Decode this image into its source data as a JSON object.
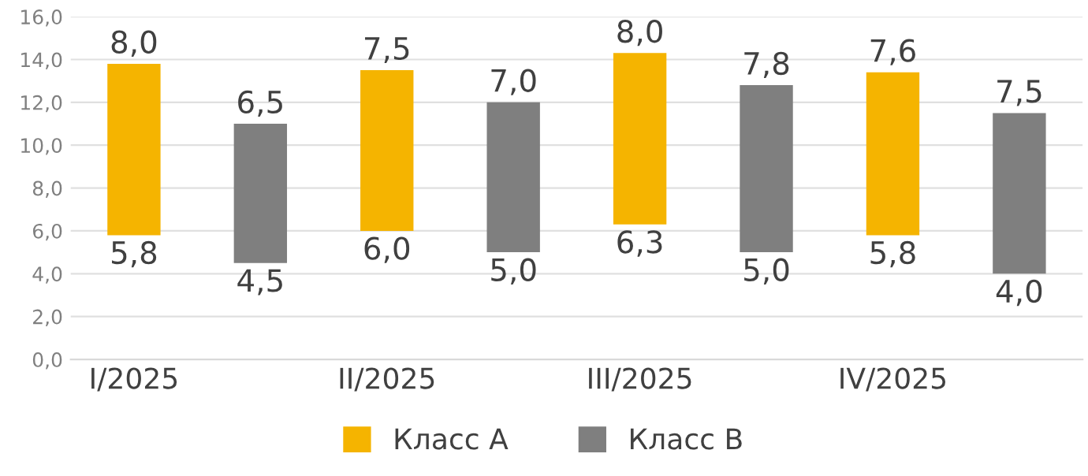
{
  "chart_data": {
    "type": "bar",
    "categories": [
      "I/2025",
      null,
      "II/2025",
      null,
      "III/2025",
      null,
      "IV/2025",
      null
    ],
    "series": [
      {
        "name": "Класс А",
        "color": "#f5b400",
        "values": [
          8.0,
          null,
          7.5,
          null,
          8.0,
          null,
          7.6,
          null
        ],
        "base": [
          5.8,
          null,
          6.0,
          null,
          6.3,
          null,
          5.8,
          null
        ],
        "value_labels": [
          "8,0",
          null,
          "7,5",
          null,
          "8,0",
          null,
          "7,6",
          null
        ]
      },
      {
        "name": "Класс B",
        "color": "#7f7f7f",
        "values": [
          null,
          6.5,
          null,
          7.0,
          null,
          7.8,
          null,
          7.5
        ],
        "base": [
          null,
          4.5,
          null,
          5.0,
          null,
          5.0,
          null,
          4.0
        ],
        "value_labels": [
          null,
          "6,5",
          null,
          "7,0",
          null,
          "7,8",
          null,
          "7,5"
        ]
      }
    ],
    "annotations": [
      {
        "text": "5,8",
        "y": 5.8
      },
      {
        "text": "4,5",
        "y": 4.5
      },
      {
        "text": "6,0",
        "y": 6.0
      },
      {
        "text": "5,0",
        "y": 5.0
      },
      {
        "text": "6,3",
        "y": 6.3
      },
      {
        "text": "5,0",
        "y": 5.0
      },
      {
        "text": "5,8",
        "y": 5.8
      },
      {
        "text": "4,0",
        "y": 4.0
      }
    ],
    "ylim": [
      0,
      16
    ],
    "yticks": [
      {
        "value": 0,
        "label": "0,0"
      },
      {
        "value": 2,
        "label": "2,0"
      },
      {
        "value": 4,
        "label": "4,0"
      },
      {
        "value": 6,
        "label": "6,0"
      },
      {
        "value": 8,
        "label": "8,0"
      },
      {
        "value": 10,
        "label": "10,0"
      },
      {
        "value": 12,
        "label": "12,0"
      },
      {
        "value": 14,
        "label": "14,0"
      },
      {
        "value": 16,
        "label": "16,0"
      }
    ],
    "grid": "y",
    "legend": "bottom"
  }
}
